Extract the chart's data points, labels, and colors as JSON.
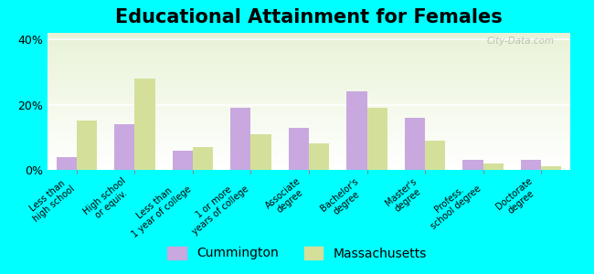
{
  "title": "Educational Attainment for Females",
  "categories": [
    "Less than\nhigh school",
    "High school\nor equiv.",
    "Less than\n1 year of college",
    "1 or more\nyears of college",
    "Associate\ndegree",
    "Bachelor's\ndegree",
    "Master's\ndegree",
    "Profess.\nschool degree",
    "Doctorate\ndegree"
  ],
  "cummington": [
    4,
    14,
    6,
    19,
    13,
    24,
    16,
    3,
    3
  ],
  "massachusetts": [
    15,
    28,
    7,
    11,
    8,
    19,
    9,
    2,
    1
  ],
  "cummington_color": "#c9a8e0",
  "massachusetts_color": "#d4e09a",
  "background_color": "#00ffff",
  "ylabel_ticks": [
    "0%",
    "20%",
    "40%"
  ],
  "yticks": [
    0,
    20,
    40
  ],
  "ylim": [
    0,
    42
  ],
  "title_fontsize": 15,
  "tick_label_fontsize": 7,
  "legend_fontsize": 10,
  "bar_width": 0.35,
  "watermark": "City-Data.com"
}
